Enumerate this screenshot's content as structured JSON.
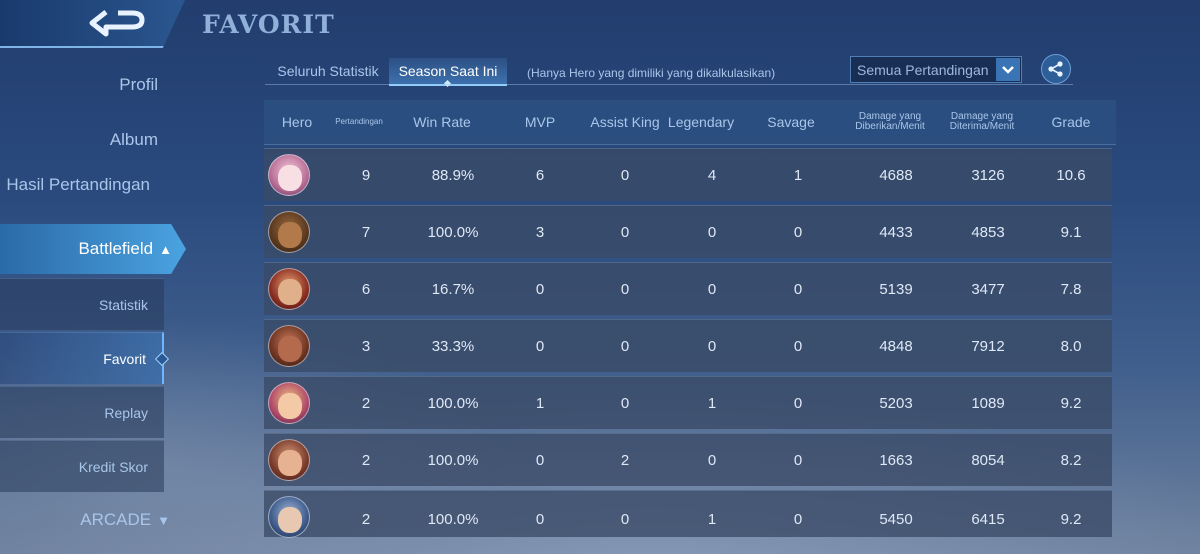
{
  "title": "FAVORIT",
  "sidebar": {
    "items": [
      "Profil",
      "Album",
      "Hasil Pertandingan"
    ],
    "battlefield": "Battlefield",
    "sub_items": [
      "Statistik",
      "Favorit",
      "Replay",
      "Kredit Skor"
    ],
    "active_sub": "Favorit",
    "arcade": "ARCADE"
  },
  "tabs": [
    {
      "label": "Seluruh Statistik",
      "active": false
    },
    {
      "label": "Season Saat Ini",
      "active": true
    }
  ],
  "note": "(Hanya Hero yang dimiliki yang dikalkulasikan)",
  "filter": {
    "selected": "Semua Pertandingan"
  },
  "icons": {
    "back": "back-arrow-icon",
    "share": "share-icon",
    "dropdown": "chevron-down-icon"
  },
  "colors": {
    "accent": "#4aa3e0",
    "header_bg": "#2c5080",
    "row_bg": "#3a4a66"
  },
  "table": {
    "headers": {
      "hero": "Hero",
      "matches": "Pertandingan",
      "win_rate": "Win Rate",
      "mvp": "MVP",
      "assist_king": "Assist King",
      "legendary": "Legendary",
      "savage": "Savage",
      "dmg_dealt_1": "Damage yang",
      "dmg_dealt_2": "Diberikan/Menit",
      "dmg_taken_1": "Damage yang",
      "dmg_taken_2": "Diterima/Menit",
      "grade": "Grade"
    },
    "rows": [
      {
        "matches": "9",
        "win_rate": "88.9%",
        "mvp": "6",
        "assist_king": "0",
        "legendary": "4",
        "savage": "1",
        "dmg_dealt": "4688",
        "dmg_taken": "3126",
        "grade": "10.6"
      },
      {
        "matches": "7",
        "win_rate": "100.0%",
        "mvp": "3",
        "assist_king": "0",
        "legendary": "0",
        "savage": "0",
        "dmg_dealt": "4433",
        "dmg_taken": "4853",
        "grade": "9.1"
      },
      {
        "matches": "6",
        "win_rate": "16.7%",
        "mvp": "0",
        "assist_king": "0",
        "legendary": "0",
        "savage": "0",
        "dmg_dealt": "5139",
        "dmg_taken": "3477",
        "grade": "7.8"
      },
      {
        "matches": "3",
        "win_rate": "33.3%",
        "mvp": "0",
        "assist_king": "0",
        "legendary": "0",
        "savage": "0",
        "dmg_dealt": "4848",
        "dmg_taken": "7912",
        "grade": "8.0"
      },
      {
        "matches": "2",
        "win_rate": "100.0%",
        "mvp": "1",
        "assist_king": "0",
        "legendary": "1",
        "savage": "0",
        "dmg_dealt": "5203",
        "dmg_taken": "1089",
        "grade": "9.2"
      },
      {
        "matches": "2",
        "win_rate": "100.0%",
        "mvp": "0",
        "assist_king": "2",
        "legendary": "0",
        "savage": "0",
        "dmg_dealt": "1663",
        "dmg_taken": "8054",
        "grade": "8.2"
      },
      {
        "matches": "2",
        "win_rate": "100.0%",
        "mvp": "0",
        "assist_king": "0",
        "legendary": "1",
        "savage": "0",
        "dmg_dealt": "5450",
        "dmg_taken": "6415",
        "grade": "9.2"
      }
    ]
  }
}
